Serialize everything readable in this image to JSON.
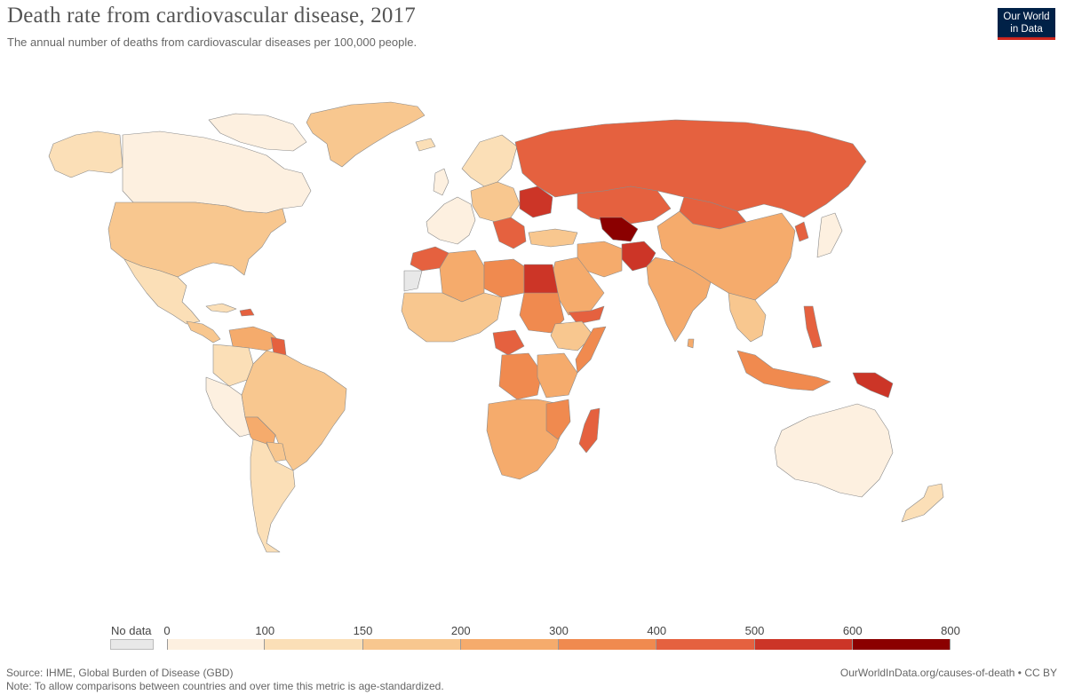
{
  "header": {
    "title": "Death rate from cardiovascular disease, 2017",
    "subtitle": "The annual number of deaths from cardiovascular diseases per 100,000 people."
  },
  "logo": {
    "line1": "Our World",
    "line2": "in Data"
  },
  "legend": {
    "no_data_label": "No data",
    "ticks": [
      "0",
      "100",
      "150",
      "200",
      "300",
      "400",
      "500",
      "600",
      "800"
    ],
    "colors": [
      "#fdf0e0",
      "#fbdfb7",
      "#f8c78f",
      "#f5ab6c",
      "#f08a4f",
      "#e5613f",
      "#cc3527",
      "#8b0000"
    ],
    "no_data_color": "#e8e8e8"
  },
  "footer": {
    "source": "Source: IHME, Global Burden of Disease (GBD)",
    "note": "Note: To allow comparisons between countries and over time this metric is age-standardized.",
    "link": "OurWorldInData.org/causes-of-death • CC BY"
  }
}
